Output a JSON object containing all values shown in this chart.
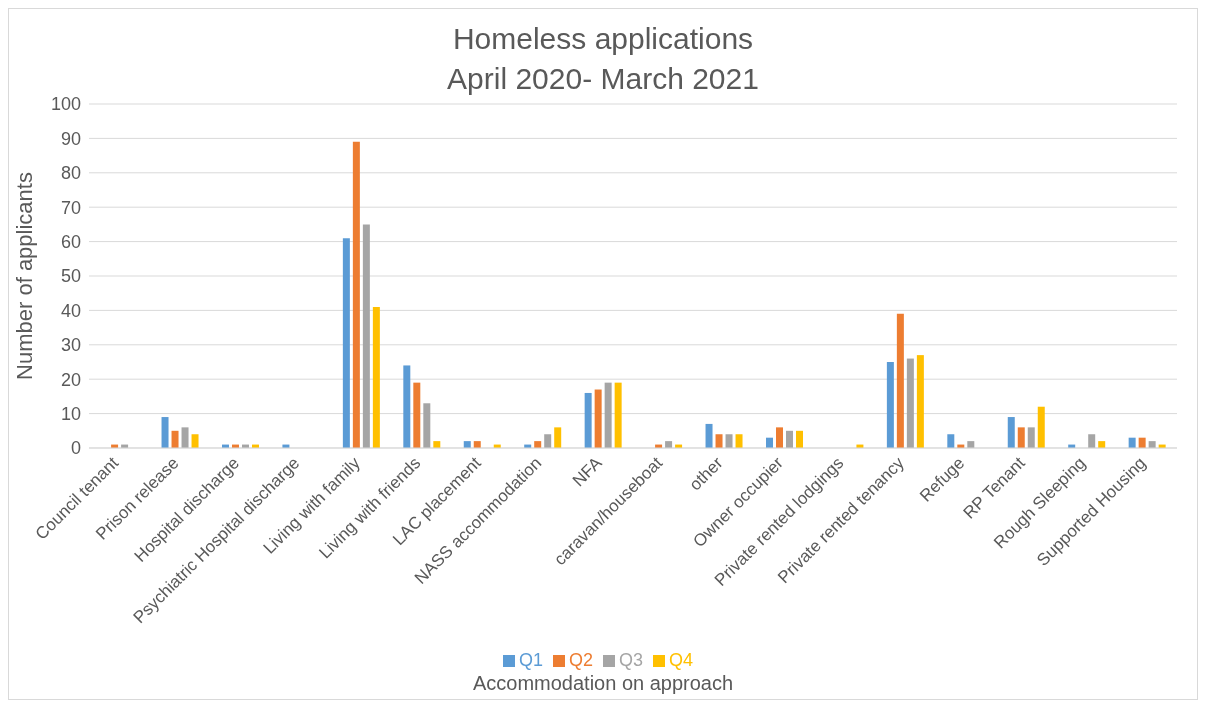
{
  "chart_data": {
    "type": "bar",
    "title": "Homeless applications",
    "subtitle": "April 2020- March 2021",
    "xlabel": "Accommodation on approach",
    "ylabel": "Number of applicants",
    "categories": [
      "Council tenant",
      "Prison release",
      "Hospital discharge",
      "Psychiatric Hospital discharge",
      "Living with family",
      "Living with friends",
      "LAC placement",
      "NASS accommodation",
      "NFA",
      "caravan/houseboat",
      "other",
      "Owner occupier",
      "Private rented lodgings",
      "Private rented tenancy",
      "Refuge",
      "RP Tenant",
      "Rough Sleeping",
      "Supported Housing"
    ],
    "series": [
      {
        "name": "Q1",
        "color": "#5b9bd5",
        "values": [
          0,
          9,
          1,
          1,
          61,
          24,
          2,
          1,
          16,
          0,
          7,
          3,
          0,
          25,
          4,
          9,
          1,
          3
        ]
      },
      {
        "name": "Q2",
        "color": "#ed7d31",
        "values": [
          1,
          5,
          1,
          0,
          89,
          19,
          2,
          2,
          17,
          1,
          4,
          6,
          0,
          39,
          1,
          6,
          0,
          3
        ]
      },
      {
        "name": "Q3",
        "color": "#a5a5a5",
        "values": [
          1,
          6,
          1,
          0,
          65,
          13,
          0,
          4,
          19,
          2,
          4,
          5,
          0,
          26,
          2,
          6,
          4,
          2
        ]
      },
      {
        "name": "Q4",
        "color": "#ffc000",
        "values": [
          0,
          4,
          1,
          0,
          41,
          2,
          1,
          6,
          19,
          1,
          4,
          5,
          1,
          27,
          0,
          12,
          2,
          1
        ]
      }
    ],
    "ylim": [
      0,
      100
    ],
    "yticks": [
      0,
      10,
      20,
      30,
      40,
      50,
      60,
      70,
      80,
      90,
      100
    ],
    "grid": "y",
    "legend": "bottom"
  }
}
